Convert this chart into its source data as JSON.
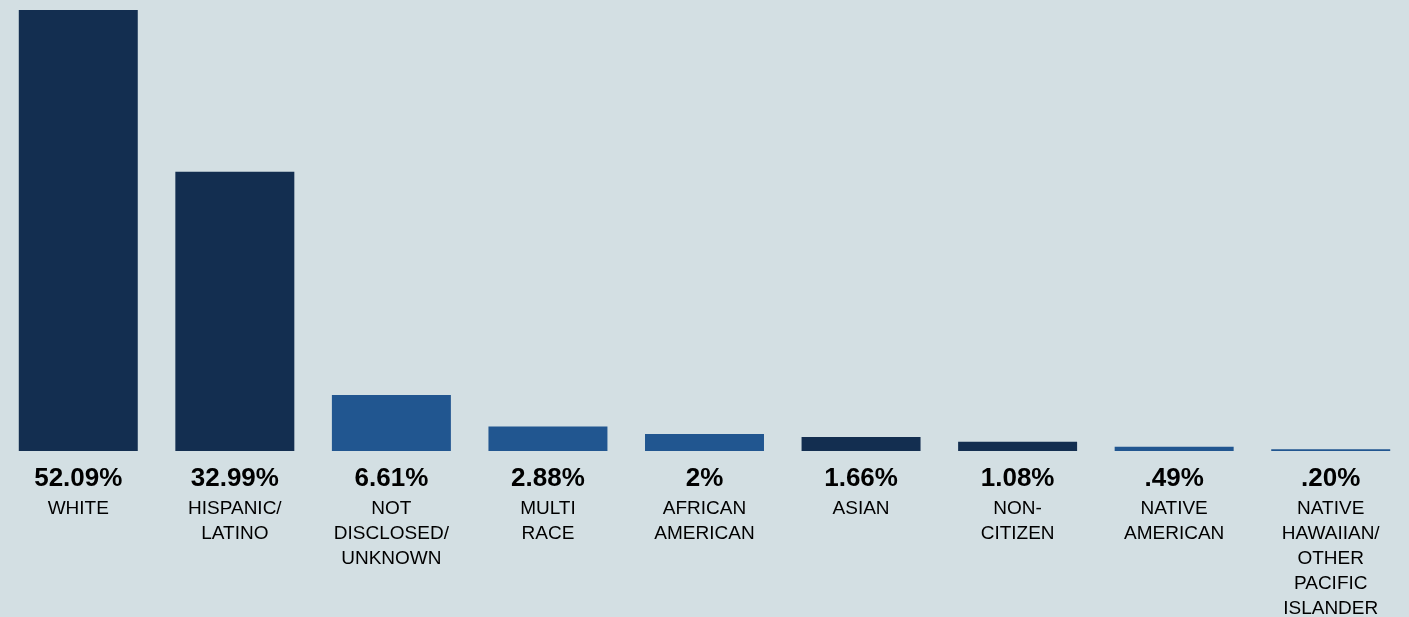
{
  "chart_data": {
    "type": "bar",
    "categories": [
      "WHITE",
      "HISPANIC/\nLATINO",
      "NOT\nDISCLOSED/\nUNKNOWN",
      "MULTI\nRACE",
      "AFRICAN\nAMERICAN",
      "ASIAN",
      "NON-\nCITIZEN",
      "NATIVE\nAMERICAN",
      "NATIVE\nHAWAIIAN/\nOTHER\nPACIFIC\nISLANDER"
    ],
    "values": [
      52.09,
      32.99,
      6.61,
      2.88,
      2,
      1.66,
      1.08,
      0.49,
      0.2
    ],
    "value_labels": [
      "52.09%",
      "32.99%",
      "6.61%",
      "2.88%",
      "2%",
      "1.66%",
      "1.08%",
      ".49%",
      ".20%"
    ],
    "colors": [
      "#132e50",
      "#132e50",
      "#215690",
      "#215690",
      "#215690",
      "#132e50",
      "#132e50",
      "#215690",
      "#215690"
    ]
  }
}
